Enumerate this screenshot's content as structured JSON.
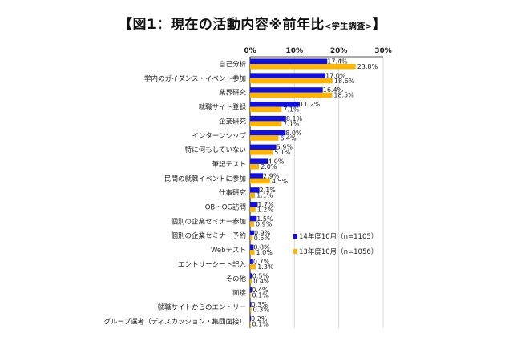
{
  "chart_data": {
    "type": "bar",
    "orientation": "horizontal",
    "title": "【図1：現在の活動内容※前年比",
    "subtitle": "<学生調査>",
    "title_end": "】",
    "categories": [
      "自己分析",
      "学内のガイダンス・イベント参加",
      "業界研究",
      "就職サイト登録",
      "企業研究",
      "インターンシップ",
      "特に何もしていない",
      "筆記テスト",
      "民間の就職イベントに参加",
      "仕事研究",
      "OB・OG訪問",
      "個別の企業セミナー参加",
      "個別の企業セミナー予約",
      "Webテスト",
      "エントリーシート記入",
      "その他",
      "面接",
      "就職サイトからのエントリー",
      "グループ選考（ディスカッション・集団面接）"
    ],
    "series": [
      {
        "name": "14年度10月（n=1105）",
        "color": "#1010e0",
        "values": [
          17.4,
          17.0,
          16.4,
          11.2,
          8.1,
          8.0,
          5.9,
          4.0,
          2.9,
          2.1,
          1.7,
          1.5,
          0.9,
          0.8,
          0.7,
          0.5,
          0.4,
          0.3,
          0.2
        ]
      },
      {
        "name": "13年度10月（n=1056）",
        "color": "#ffb400",
        "values": [
          23.8,
          18.6,
          18.5,
          7.1,
          7.1,
          6.4,
          5.1,
          2.0,
          4.5,
          1.1,
          1.2,
          0.9,
          0.5,
          1.0,
          1.3,
          0.4,
          0.1,
          0.3,
          0.1
        ]
      }
    ],
    "xlim": [
      0,
      30
    ],
    "xticks": [
      "0%",
      "10%",
      "20%",
      "30%"
    ],
    "grid": true,
    "legend_position": "right",
    "value_suffix": "%"
  }
}
